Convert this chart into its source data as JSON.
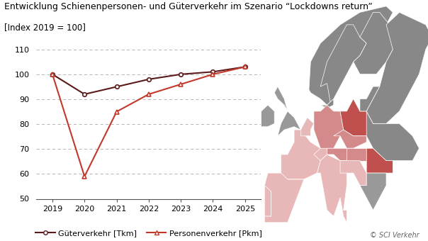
{
  "title": "Entwicklung Schienenpersonen- und Güterverkehr im Szenario “Lockdowns return”",
  "subtitle": "[Index 2019 = 100]",
  "years": [
    2019,
    2020,
    2021,
    2022,
    2023,
    2024,
    2025
  ],
  "gueterverkehr": [
    100,
    92,
    95,
    98,
    100,
    101,
    103
  ],
  "personenverkehr": [
    100,
    59,
    85,
    92,
    96,
    100,
    103
  ],
  "ylim": [
    50,
    110
  ],
  "yticks": [
    50,
    60,
    70,
    80,
    90,
    100,
    110
  ],
  "line_color_gueter": "#5c1a1a",
  "line_color_personen": "#c0392b",
  "marker_gueter": "o",
  "marker_personen": "^",
  "grid_color": "#aaaaaa",
  "background_color": "#ffffff",
  "legend_gueter": "Güterverkehr [Tkm]",
  "legend_personen": "Personenverkehr [Pkm]",
  "watermark": "© SCI Verkehr",
  "title_fontsize": 9.0,
  "subtitle_fontsize": 8.5,
  "axis_fontsize": 8.0,
  "legend_fontsize": 8.0,
  "map_bg": "#a0a0a0",
  "color_dark_red": "#c0504d",
  "color_med_red": "#d48a8a",
  "color_light_red": "#e8b8b8",
  "color_pale_red": "#f0d0d0",
  "border_color": "#ffffff"
}
